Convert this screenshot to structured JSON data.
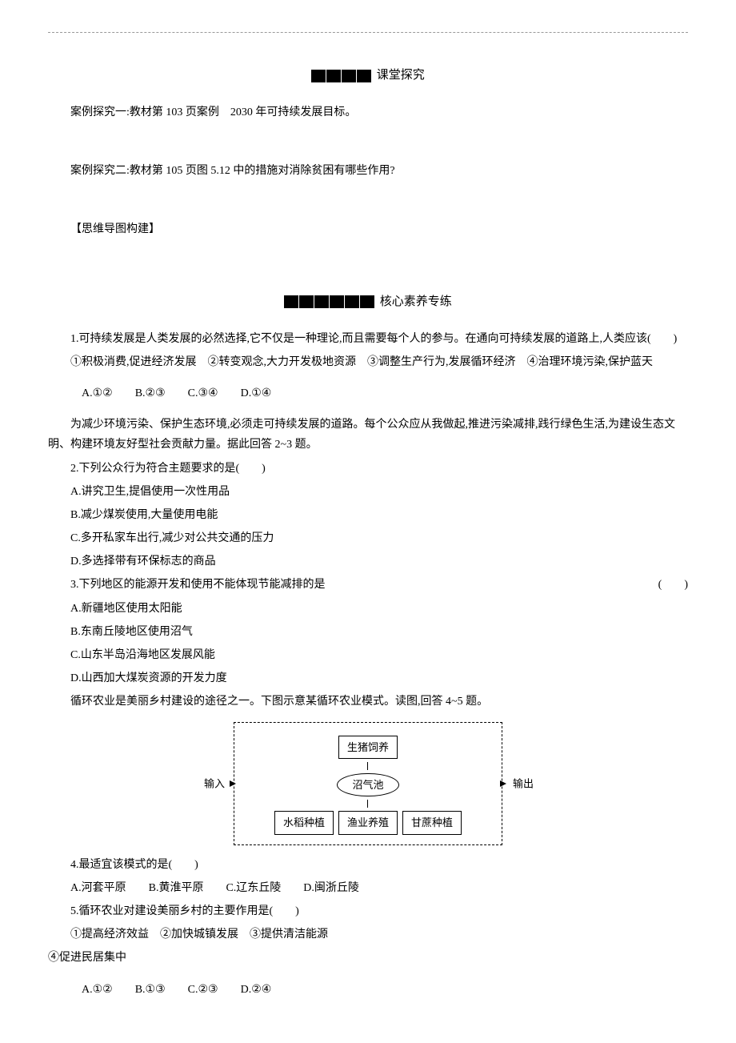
{
  "topline": "",
  "section1": {
    "boxes": 4,
    "title": "课堂探究",
    "case1": "案例探究一:教材第 103 页案例　2030 年可持续发展目标。",
    "case2": "案例探究二:教材第 105 页图 5.12 中的措施对消除贫困有哪些作用?",
    "mind": "【思维导图构建】"
  },
  "section2": {
    "boxes": 6,
    "title": "核心素养专练",
    "q1": {
      "stem": "1.可持续发展是人类发展的必然选择,它不仅是一种理论,而且需要每个人的参与。在通向可持续发展的道路上,人类应该(　　)",
      "items": "①积极消费,促进经济发展　②转变观念,大力开发极地资源　③调整生产行为,发展循环经济　④治理环境污染,保护蓝天",
      "opts": "A.①②　　B.②③　　C.③④　　D.①④"
    },
    "intro23": "为减少环境污染、保护生态环境,必须走可持续发展的道路。每个公众应从我做起,推进污染减排,践行绿色生活,为建设生态文明、构建环境友好型社会贡献力量。据此回答 2~3 题。",
    "q2": {
      "stem": "2.下列公众行为符合主题要求的是(　　)",
      "a": "A.讲究卫生,提倡使用一次性用品",
      "b": "B.减少煤炭使用,大量使用电能",
      "c": "C.多开私家车出行,减少对公共交通的压力",
      "d": "D.多选择带有环保标志的商品"
    },
    "q3": {
      "stem": "3.下列地区的能源开发和使用不能体现节能减排的是",
      "paren": "(　　)",
      "a": "A.新疆地区使用太阳能",
      "b": "B.东南丘陵地区使用沼气",
      "c": "C.山东半岛沿海地区发展风能",
      "d": "D.山西加大煤炭资源的开发力度"
    },
    "intro45": "循环农业是美丽乡村建设的途径之一。下图示意某循环农业模式。读图,回答 4~5 题。",
    "diagram": {
      "top": "生猪饲养",
      "mid": "沼气池",
      "b1": "水稻种植",
      "b2": "渔业养殖",
      "b3": "甘蔗种植",
      "in": "输入",
      "out": "输出"
    },
    "q4": {
      "stem": "4.最适宜该模式的是(　　)",
      "opts": "A.河套平原　　B.黄淮平原　　C.辽东丘陵　　D.闽浙丘陵"
    },
    "q5": {
      "stem": "5.循环农业对建设美丽乡村的主要作用是(　　)",
      "items1": "①提高经济效益　②加快城镇发展　③提供清洁能源",
      "items2": "④促进民居集中",
      "opts": "A.①②　　B.①③　　C.②③　　D.②④"
    }
  }
}
